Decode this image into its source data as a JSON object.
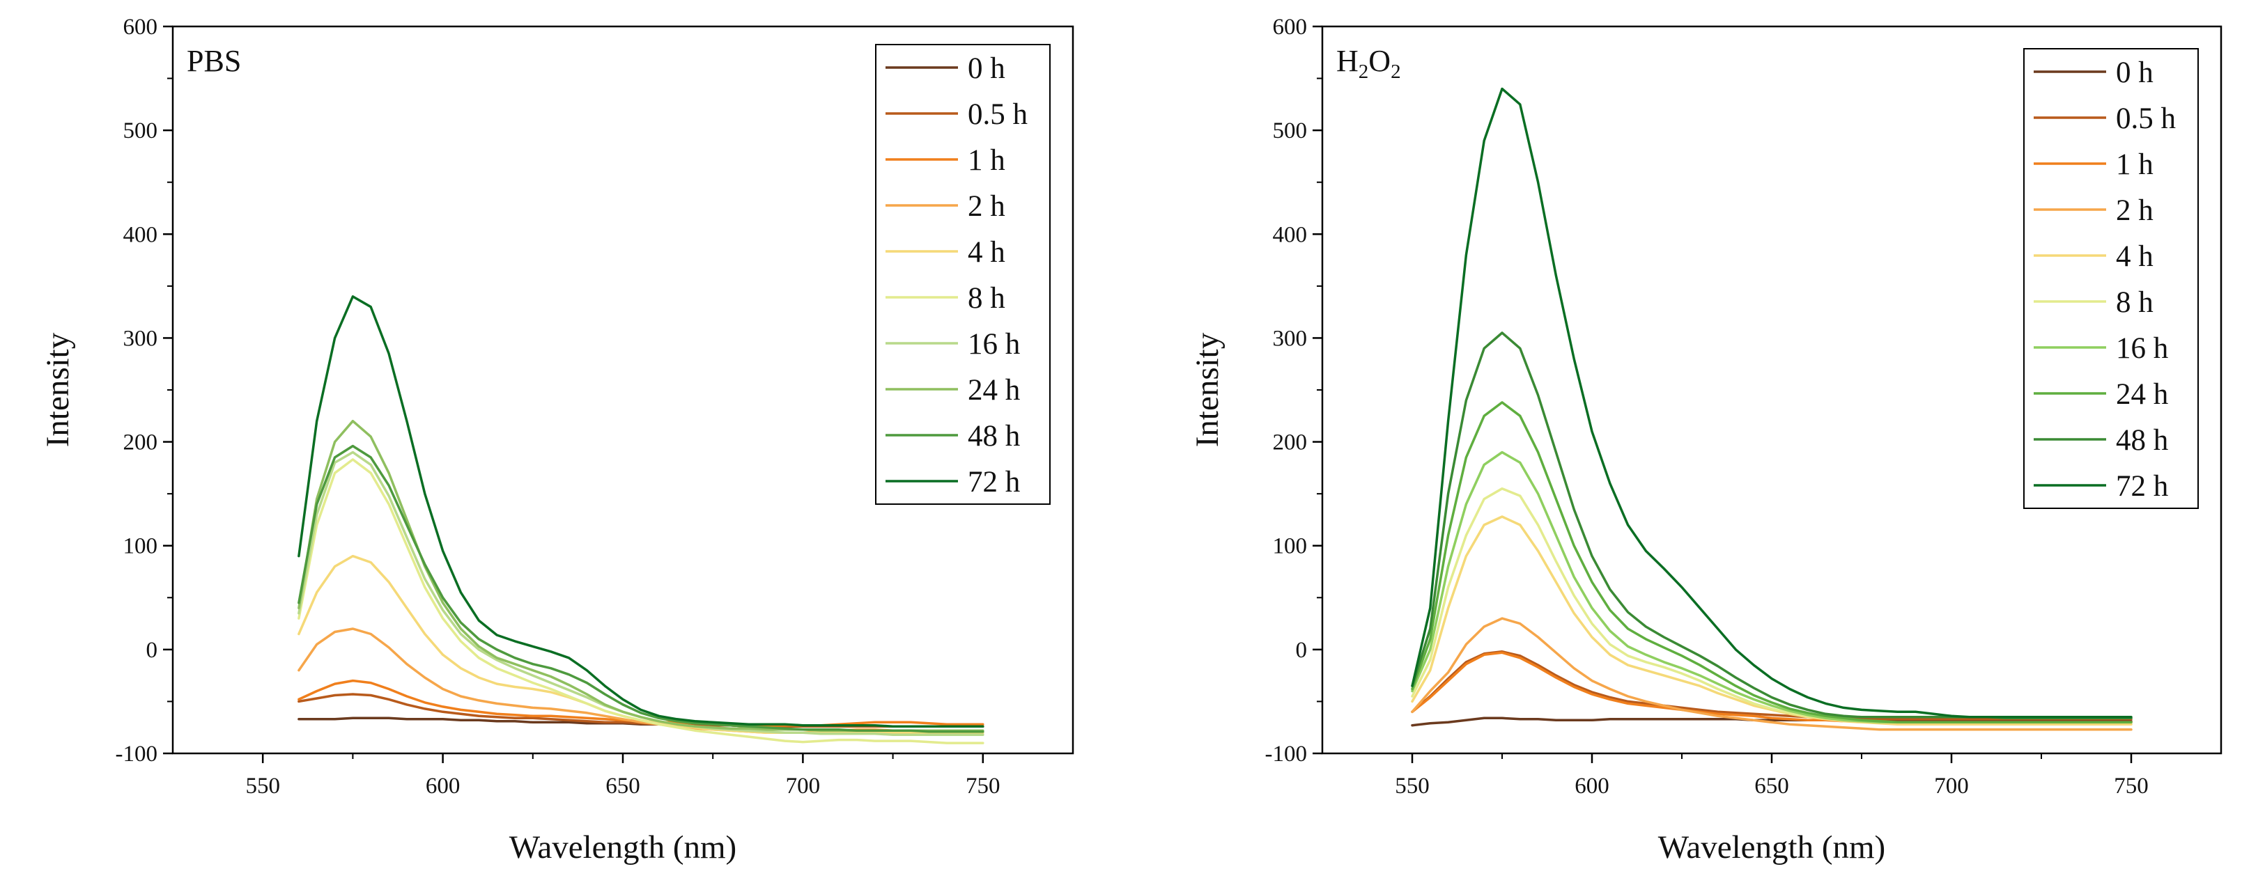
{
  "chart_data": [
    {
      "type": "line",
      "title": "PBS",
      "title_sub": "",
      "title_tail": "",
      "xlabel": "Wavelength (nm)",
      "ylabel": "Intensity",
      "xlim": [
        525,
        775
      ],
      "ylim": [
        -100,
        600
      ],
      "xticks": [
        550,
        600,
        650,
        700,
        750
      ],
      "yticks": [
        -100,
        0,
        100,
        200,
        300,
        400,
        500,
        600
      ],
      "legend_position": "top-right",
      "x": [
        560,
        565,
        570,
        575,
        580,
        585,
        590,
        595,
        600,
        605,
        610,
        615,
        620,
        625,
        630,
        635,
        640,
        645,
        650,
        655,
        660,
        665,
        670,
        675,
        680,
        685,
        690,
        695,
        700,
        705,
        710,
        715,
        720,
        725,
        730,
        735,
        740,
        745,
        750
      ],
      "series": [
        {
          "name": "0 h",
          "color": "#6b3a1e",
          "values": [
            -67,
            -67,
            -67,
            -66,
            -66,
            -66,
            -67,
            -67,
            -67,
            -68,
            -68,
            -69,
            -69,
            -70,
            -70,
            -70,
            -71,
            -71,
            -71,
            -72,
            -72,
            -72,
            -73,
            -73,
            -73,
            -74,
            -74,
            -74,
            -74,
            -74,
            -74,
            -74,
            -74,
            -74,
            -74,
            -74,
            -74,
            -74,
            -74
          ]
        },
        {
          "name": "0.5 h",
          "color": "#b85a1b",
          "values": [
            -50,
            -47,
            -44,
            -43,
            -44,
            -48,
            -53,
            -57,
            -60,
            -62,
            -64,
            -65,
            -66,
            -66,
            -67,
            -68,
            -69,
            -70,
            -70,
            -71,
            -72,
            -72,
            -73,
            -73,
            -73,
            -74,
            -74,
            -74,
            -74,
            -74,
            -74,
            -74,
            -74,
            -74,
            -74,
            -74,
            -74,
            -74,
            -74
          ]
        },
        {
          "name": "1 h",
          "color": "#f07f1c",
          "values": [
            -48,
            -40,
            -33,
            -30,
            -32,
            -38,
            -45,
            -51,
            -55,
            -58,
            -60,
            -62,
            -63,
            -64,
            -64,
            -65,
            -66,
            -67,
            -68,
            -69,
            -70,
            -70,
            -71,
            -71,
            -72,
            -72,
            -73,
            -73,
            -73,
            -73,
            -72,
            -71,
            -70,
            -70,
            -70,
            -71,
            -72,
            -72,
            -72
          ]
        },
        {
          "name": "2 h",
          "color": "#f6a64a",
          "values": [
            -20,
            5,
            17,
            20,
            15,
            2,
            -14,
            -27,
            -38,
            -45,
            -49,
            -52,
            -54,
            -56,
            -57,
            -59,
            -61,
            -64,
            -67,
            -70,
            -72,
            -74,
            -76,
            -77,
            -78,
            -79,
            -80,
            -80,
            -80,
            -79,
            -78,
            -77,
            -77,
            -78,
            -79,
            -80,
            -81,
            -81,
            -80
          ]
        },
        {
          "name": "4 h",
          "color": "#f5d978",
          "values": [
            15,
            55,
            80,
            90,
            84,
            65,
            40,
            15,
            -5,
            -18,
            -27,
            -33,
            -36,
            -38,
            -41,
            -46,
            -52,
            -59,
            -64,
            -68,
            -71,
            -73,
            -75,
            -77,
            -78,
            -79,
            -80,
            -80,
            -80,
            -80,
            -80,
            -80,
            -80,
            -80,
            -80,
            -80,
            -80,
            -80,
            -80
          ]
        },
        {
          "name": "8 h",
          "color": "#e3eb8e",
          "values": [
            30,
            120,
            170,
            183,
            170,
            140,
            100,
            60,
            30,
            8,
            -8,
            -18,
            -25,
            -32,
            -38,
            -45,
            -52,
            -59,
            -64,
            -68,
            -72,
            -75,
            -78,
            -80,
            -82,
            -84,
            -86,
            -88,
            -89,
            -88,
            -87,
            -87,
            -88,
            -88,
            -88,
            -89,
            -90,
            -90,
            -90
          ]
        },
        {
          "name": "16 h",
          "color": "#b8d98a",
          "values": [
            35,
            130,
            180,
            190,
            178,
            148,
            108,
            68,
            38,
            15,
            0,
            -10,
            -18,
            -25,
            -32,
            -39,
            -46,
            -54,
            -60,
            -65,
            -69,
            -72,
            -74,
            -76,
            -77,
            -78,
            -79,
            -80,
            -80,
            -81,
            -81,
            -81,
            -81,
            -82,
            -82,
            -82,
            -82,
            -82,
            -82
          ]
        },
        {
          "name": "24 h",
          "color": "#8fbf5f",
          "values": [
            40,
            145,
            200,
            220,
            205,
            170,
            125,
            80,
            45,
            20,
            3,
            -8,
            -14,
            -20,
            -26,
            -34,
            -43,
            -53,
            -60,
            -65,
            -69,
            -72,
            -74,
            -75,
            -76,
            -76,
            -77,
            -77,
            -77,
            -78,
            -78,
            -78,
            -78,
            -78,
            -78,
            -78,
            -78,
            -78,
            -78
          ]
        },
        {
          "name": "48 h",
          "color": "#4e9a3e",
          "values": [
            45,
            140,
            185,
            196,
            185,
            158,
            120,
            82,
            50,
            26,
            10,
            0,
            -8,
            -14,
            -18,
            -24,
            -32,
            -43,
            -53,
            -61,
            -66,
            -69,
            -71,
            -72,
            -73,
            -74,
            -75,
            -76,
            -77,
            -77,
            -77,
            -78,
            -78,
            -78,
            -78,
            -79,
            -79,
            -79,
            -79
          ]
        },
        {
          "name": "72 h",
          "color": "#0a6e23",
          "values": [
            90,
            220,
            300,
            340,
            330,
            285,
            220,
            150,
            95,
            55,
            28,
            14,
            8,
            3,
            -2,
            -8,
            -20,
            -35,
            -48,
            -58,
            -64,
            -67,
            -69,
            -70,
            -71,
            -72,
            -72,
            -72,
            -73,
            -73,
            -73,
            -73,
            -73,
            -74,
            -74,
            -74,
            -74,
            -74,
            -74
          ]
        }
      ]
    },
    {
      "type": "line",
      "title": "H",
      "title_sub": "2",
      "title_tail": "O",
      "title_sub2": "2",
      "xlabel": "Wavelength (nm)",
      "ylabel": "Intensity",
      "xlim": [
        525,
        775
      ],
      "ylim": [
        -100,
        600
      ],
      "xticks": [
        550,
        600,
        650,
        700,
        750
      ],
      "yticks": [
        -100,
        0,
        100,
        200,
        300,
        400,
        500,
        600
      ],
      "legend_position": "top-right",
      "x": [
        550,
        555,
        560,
        565,
        570,
        575,
        580,
        585,
        590,
        595,
        600,
        605,
        610,
        615,
        620,
        625,
        630,
        635,
        640,
        645,
        650,
        655,
        660,
        665,
        670,
        675,
        680,
        685,
        690,
        695,
        700,
        705,
        710,
        715,
        720,
        725,
        730,
        735,
        740,
        745,
        750
      ],
      "series": [
        {
          "name": "0 h",
          "color": "#6b3a1e",
          "values": [
            -73,
            -71,
            -70,
            -68,
            -66,
            -66,
            -67,
            -67,
            -68,
            -68,
            -68,
            -67,
            -67,
            -67,
            -67,
            -67,
            -67,
            -67,
            -67,
            -68,
            -68,
            -68,
            -68,
            -68,
            -68,
            -68,
            -68,
            -68,
            -68,
            -68,
            -68,
            -68,
            -69,
            -69,
            -69,
            -69,
            -69,
            -69,
            -69,
            -69,
            -69
          ]
        },
        {
          "name": "0.5 h",
          "color": "#b85a1b",
          "values": [
            -60,
            -45,
            -28,
            -12,
            -4,
            -2,
            -6,
            -15,
            -25,
            -34,
            -41,
            -46,
            -50,
            -52,
            -54,
            -56,
            -58,
            -60,
            -61,
            -62,
            -63,
            -64,
            -65,
            -65,
            -66,
            -66,
            -67,
            -67,
            -67,
            -67,
            -67,
            -67,
            -67,
            -67,
            -67,
            -67,
            -67,
            -67,
            -67,
            -67,
            -67
          ]
        },
        {
          "name": "1 h",
          "color": "#f07f1c",
          "values": [
            -60,
            -46,
            -30,
            -14,
            -5,
            -3,
            -8,
            -17,
            -27,
            -36,
            -43,
            -48,
            -52,
            -54,
            -56,
            -58,
            -60,
            -62,
            -63,
            -64,
            -66,
            -67,
            -68,
            -68,
            -69,
            -69,
            -70,
            -70,
            -70,
            -70,
            -70,
            -70,
            -70,
            -70,
            -70,
            -70,
            -70,
            -70,
            -70,
            -70,
            -70
          ]
        },
        {
          "name": "2 h",
          "color": "#f6a64a",
          "values": [
            -60,
            -40,
            -22,
            5,
            22,
            30,
            25,
            12,
            -3,
            -18,
            -30,
            -38,
            -45,
            -50,
            -54,
            -58,
            -61,
            -64,
            -66,
            -68,
            -70,
            -72,
            -73,
            -74,
            -75,
            -76,
            -77,
            -77,
            -77,
            -77,
            -77,
            -77,
            -77,
            -77,
            -77,
            -77,
            -77,
            -77,
            -77,
            -77,
            -77
          ]
        },
        {
          "name": "4 h",
          "color": "#f5d978",
          "values": [
            -50,
            -20,
            40,
            90,
            120,
            128,
            120,
            95,
            65,
            35,
            12,
            -5,
            -15,
            -20,
            -25,
            -30,
            -35,
            -42,
            -48,
            -54,
            -58,
            -62,
            -65,
            -67,
            -69,
            -70,
            -71,
            -72,
            -72,
            -72,
            -72,
            -72,
            -72,
            -72,
            -72,
            -72,
            -72,
            -72,
            -72,
            -72,
            -72
          ]
        },
        {
          "name": "8 h",
          "color": "#e3eb8e",
          "values": [
            -45,
            -10,
            60,
            110,
            145,
            155,
            148,
            120,
            85,
            52,
            25,
            5,
            -6,
            -12,
            -17,
            -23,
            -30,
            -38,
            -45,
            -52,
            -57,
            -61,
            -64,
            -66,
            -68,
            -69,
            -70,
            -70,
            -70,
            -70,
            -70,
            -70,
            -70,
            -70,
            -70,
            -70,
            -70,
            -70,
            -70,
            -70,
            -70
          ]
        },
        {
          "name": "16 h",
          "color": "#8fcf5f",
          "values": [
            -40,
            0,
            80,
            140,
            178,
            190,
            180,
            150,
            110,
            70,
            40,
            18,
            3,
            -5,
            -12,
            -18,
            -25,
            -33,
            -41,
            -48,
            -54,
            -59,
            -63,
            -66,
            -68,
            -69,
            -70,
            -70,
            -70,
            -70,
            -70,
            -70,
            -70,
            -70,
            -70,
            -70,
            -70,
            -70,
            -70,
            -70,
            -70
          ]
        },
        {
          "name": "24 h",
          "color": "#5fae3f",
          "values": [
            -38,
            10,
            110,
            185,
            225,
            238,
            225,
            190,
            145,
            100,
            65,
            38,
            20,
            10,
            2,
            -6,
            -15,
            -25,
            -35,
            -44,
            -51,
            -57,
            -61,
            -64,
            -66,
            -68,
            -69,
            -70,
            -70,
            -70,
            -70,
            -70,
            -70,
            -70,
            -70,
            -70,
            -70,
            -70,
            -70,
            -70,
            -70
          ]
        },
        {
          "name": "48 h",
          "color": "#3a8a34",
          "values": [
            -35,
            20,
            150,
            240,
            290,
            305,
            290,
            245,
            190,
            135,
            90,
            58,
            36,
            22,
            12,
            3,
            -6,
            -16,
            -27,
            -37,
            -46,
            -53,
            -58,
            -62,
            -64,
            -65,
            -65,
            -65,
            -65,
            -65,
            -65,
            -65,
            -65,
            -66,
            -66,
            -66,
            -66,
            -66,
            -66,
            -66,
            -66
          ]
        },
        {
          "name": "72 h",
          "color": "#0a6e23",
          "values": [
            -35,
            40,
            220,
            380,
            490,
            540,
            525,
            450,
            360,
            280,
            210,
            160,
            120,
            95,
            78,
            60,
            40,
            20,
            0,
            -15,
            -28,
            -38,
            -46,
            -52,
            -56,
            -58,
            -59,
            -60,
            -60,
            -62,
            -64,
            -65,
            -65,
            -65,
            -65,
            -65,
            -65,
            -65,
            -65,
            -65,
            -65
          ]
        }
      ]
    }
  ]
}
